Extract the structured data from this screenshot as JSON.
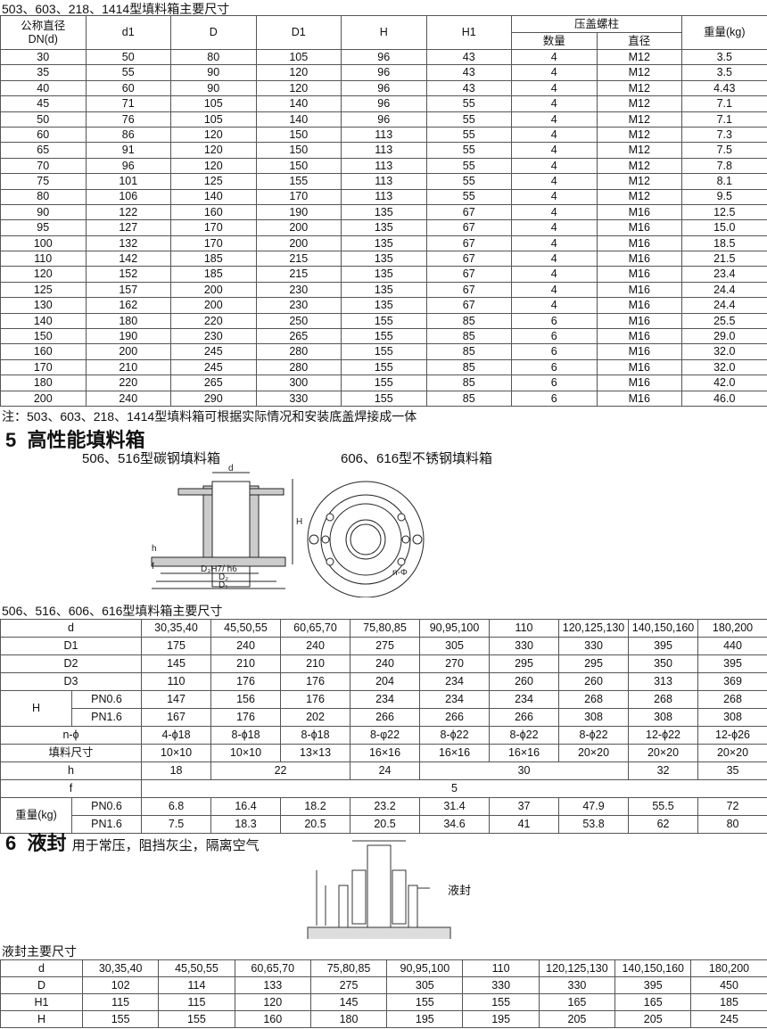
{
  "section4": {
    "title": "503、603、218、1414型填料箱主要尺寸",
    "headers": {
      "dn": "公称直径\nDN(d)",
      "d1": "d1",
      "D": "D",
      "D1": "D1",
      "H": "H",
      "H1": "H1",
      "bolt": "压盖螺柱",
      "qty": "数量",
      "dia": "直径",
      "weight": "重量(kg)"
    },
    "rows": [
      [
        "30",
        "50",
        "80",
        "105",
        "96",
        "43",
        "4",
        "M12",
        "3.5"
      ],
      [
        "35",
        "55",
        "90",
        "120",
        "96",
        "43",
        "4",
        "M12",
        "3.5"
      ],
      [
        "40",
        "60",
        "90",
        "120",
        "96",
        "43",
        "4",
        "M12",
        "4.43"
      ],
      [
        "45",
        "71",
        "105",
        "140",
        "96",
        "55",
        "4",
        "M12",
        "7.1"
      ],
      [
        "50",
        "76",
        "105",
        "140",
        "96",
        "55",
        "4",
        "M12",
        "7.1"
      ],
      [
        "60",
        "86",
        "120",
        "150",
        "113",
        "55",
        "4",
        "M12",
        "7.3"
      ],
      [
        "65",
        "91",
        "120",
        "150",
        "113",
        "55",
        "4",
        "M12",
        "7.5"
      ],
      [
        "70",
        "96",
        "120",
        "150",
        "113",
        "55",
        "4",
        "M12",
        "7.8"
      ],
      [
        "75",
        "101",
        "125",
        "155",
        "113",
        "55",
        "4",
        "M12",
        "8.1"
      ],
      [
        "80",
        "106",
        "140",
        "170",
        "113",
        "55",
        "4",
        "M12",
        "9.5"
      ],
      [
        "90",
        "122",
        "160",
        "190",
        "135",
        "67",
        "4",
        "M16",
        "12.5"
      ],
      [
        "95",
        "127",
        "170",
        "200",
        "135",
        "67",
        "4",
        "M16",
        "15.0"
      ],
      [
        "100",
        "132",
        "170",
        "200",
        "135",
        "67",
        "4",
        "M16",
        "18.5"
      ],
      [
        "110",
        "142",
        "185",
        "215",
        "135",
        "67",
        "4",
        "M16",
        "21.5"
      ],
      [
        "120",
        "152",
        "185",
        "215",
        "135",
        "67",
        "4",
        "M16",
        "23.4"
      ],
      [
        "125",
        "157",
        "200",
        "230",
        "135",
        "67",
        "4",
        "M16",
        "24.4"
      ],
      [
        "130",
        "162",
        "200",
        "230",
        "135",
        "67",
        "4",
        "M16",
        "24.4"
      ],
      [
        "140",
        "180",
        "220",
        "250",
        "155",
        "85",
        "6",
        "M16",
        "25.5"
      ],
      [
        "150",
        "190",
        "230",
        "265",
        "155",
        "85",
        "6",
        "M16",
        "29.0"
      ],
      [
        "160",
        "200",
        "245",
        "280",
        "155",
        "85",
        "6",
        "M16",
        "32.0"
      ],
      [
        "170",
        "210",
        "245",
        "280",
        "155",
        "85",
        "6",
        "M16",
        "32.0"
      ],
      [
        "180",
        "220",
        "265",
        "300",
        "155",
        "85",
        "6",
        "M16",
        "42.0"
      ],
      [
        "200",
        "240",
        "290",
        "330",
        "155",
        "85",
        "6",
        "M16",
        "46.0"
      ]
    ],
    "note": "注：503、603、218、1414型填料箱可根据实际情况和安装底盖焊接成一体"
  },
  "section5": {
    "number": "5",
    "title": "高性能填料箱",
    "caption_left": "506、516型碳钢填料箱",
    "caption_right": "606、616型不锈钢填料箱",
    "diagram_labels": {
      "d": "d",
      "H": "H",
      "h": "h",
      "f": "f",
      "D3": "D₃H7/ h6",
      "D2": "D₂",
      "D1": "D₁",
      "n_phi": "n-Φ"
    },
    "table_title": "506、516、606、616型填料箱主要尺寸",
    "d_label": "d",
    "d_values": [
      "30,35,40",
      "45,50,55",
      "60,65,70",
      "75,80,85",
      "90,95,100",
      "110",
      "120,125,130",
      "140,150,160",
      "180,200"
    ],
    "rows": [
      {
        "label": "D1",
        "values": [
          "175",
          "240",
          "240",
          "275",
          "305",
          "330",
          "330",
          "395",
          "440"
        ]
      },
      {
        "label": "D2",
        "values": [
          "145",
          "210",
          "210",
          "240",
          "270",
          "295",
          "295",
          "350",
          "395"
        ]
      },
      {
        "label": "D3",
        "values": [
          "110",
          "176",
          "176",
          "204",
          "234",
          "260",
          "260",
          "313",
          "369"
        ]
      }
    ],
    "H": {
      "label": "H",
      "rows": [
        {
          "label": "PN0.6",
          "values": [
            "147",
            "156",
            "176",
            "234",
            "234",
            "234",
            "268",
            "268",
            "268"
          ]
        },
        {
          "label": "PN1.6",
          "values": [
            "167",
            "176",
            "202",
            "266",
            "266",
            "266",
            "308",
            "308",
            "308"
          ]
        }
      ]
    },
    "n_phi": {
      "label": "n-ϕ",
      "values": [
        "4-ϕ18",
        "8-ϕ18",
        "8-ϕ18",
        "8-φ22",
        "8-ϕ22",
        "8-ϕ22",
        "8-ϕ22",
        "12-ϕ22",
        "12-ϕ26"
      ]
    },
    "packing": {
      "label": "填料尺寸",
      "values": [
        "10×10",
        "10×10",
        "13×13",
        "16×16",
        "16×16",
        "16×16",
        "20×20",
        "20×20",
        "20×20"
      ]
    },
    "h": {
      "label": "h",
      "cells": [
        {
          "v": "18",
          "span": 1
        },
        {
          "v": "22",
          "span": 2
        },
        {
          "v": "24",
          "span": 1
        },
        {
          "v": "30",
          "span": 3
        },
        {
          "v": "32",
          "span": 1
        },
        {
          "v": "35",
          "span": 1
        }
      ]
    },
    "f": {
      "label": "f",
      "value": "5"
    },
    "weight": {
      "label": "重量(kg)",
      "rows": [
        {
          "label": "PN0.6",
          "values": [
            "6.8",
            "16.4",
            "18.2",
            "23.2",
            "31.4",
            "37",
            "47.9",
            "55.5",
            "72"
          ]
        },
        {
          "label": "PN1.6",
          "values": [
            "7.5",
            "18.3",
            "20.5",
            "20.5",
            "34.6",
            "41",
            "53.8",
            "62",
            "80"
          ]
        }
      ]
    }
  },
  "section6": {
    "number": "6",
    "title": "液封",
    "subtitle": "用于常压，阻挡灰尘，隔离空气",
    "diagram_label": "液封",
    "table_title": "液封主要尺寸",
    "rows": [
      {
        "label": "d",
        "values": [
          "30,35,40",
          "45,50,55",
          "60,65,70",
          "75,80,85",
          "90,95,100",
          "110",
          "120,125,130",
          "140,150,160",
          "180,200"
        ]
      },
      {
        "label": "D",
        "values": [
          "102",
          "114",
          "133",
          "275",
          "305",
          "330",
          "330",
          "395",
          "450"
        ]
      },
      {
        "label": "H1",
        "values": [
          "115",
          "115",
          "120",
          "145",
          "155",
          "155",
          "165",
          "165",
          "185"
        ]
      },
      {
        "label": "H",
        "values": [
          "155",
          "155",
          "160",
          "180",
          "195",
          "195",
          "205",
          "205",
          "245"
        ]
      }
    ]
  }
}
